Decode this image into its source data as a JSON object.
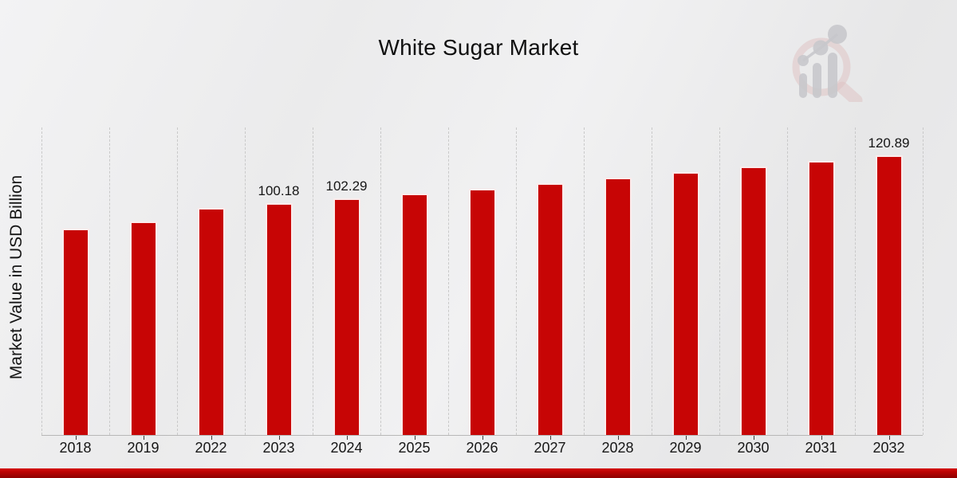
{
  "title": "White Sugar Market",
  "ylabel": "Market Value in USD Billion",
  "logo": {
    "name": "market-research-magnifier-chart-logo"
  },
  "colors": {
    "bar": "#c70505",
    "bar_edge": "#ffffff",
    "gridline": "#c9c9c9",
    "axis_line": "#b7b7b7",
    "tick": "#3c3c3c",
    "text": "#111111",
    "band_top": "#d40404",
    "band_bottom": "#8e0000",
    "logo_pink": "#dcbdbd",
    "logo_gray": "#c2c2c7"
  },
  "chart_data": {
    "type": "bar",
    "title": "White Sugar Market",
    "xlabel": "",
    "ylabel": "Market Value in USD Billion",
    "unit": "USD Billion",
    "legend": null,
    "grid": "vertical-dashed",
    "ylim": [
      0,
      133
    ],
    "categories": [
      "2018",
      "2019",
      "2022",
      "2023",
      "2024",
      "2025",
      "2026",
      "2027",
      "2028",
      "2029",
      "2030",
      "2031",
      "2032"
    ],
    "values": [
      89.2,
      92.2,
      98.2,
      100.18,
      102.29,
      104.45,
      106.6,
      108.9,
      111.2,
      113.6,
      116.0,
      118.4,
      120.89
    ],
    "points": [
      {
        "year": "2018",
        "value": 89.2,
        "label": null
      },
      {
        "year": "2019",
        "value": 92.2,
        "label": null
      },
      {
        "year": "2022",
        "value": 98.2,
        "label": null
      },
      {
        "year": "2023",
        "value": 100.18,
        "label": "100.18"
      },
      {
        "year": "2024",
        "value": 102.29,
        "label": "102.29"
      },
      {
        "year": "2025",
        "value": 104.45,
        "label": null
      },
      {
        "year": "2026",
        "value": 106.6,
        "label": null
      },
      {
        "year": "2027",
        "value": 108.9,
        "label": null
      },
      {
        "year": "2028",
        "value": 111.2,
        "label": null
      },
      {
        "year": "2029",
        "value": 113.6,
        "label": null
      },
      {
        "year": "2030",
        "value": 116.0,
        "label": null
      },
      {
        "year": "2031",
        "value": 118.4,
        "label": null
      },
      {
        "year": "2032",
        "value": 120.89,
        "label": "120.89"
      }
    ],
    "labeled_values_shown": {
      "2023": "100.18",
      "2024": "102.29",
      "2032": "120.89"
    }
  }
}
